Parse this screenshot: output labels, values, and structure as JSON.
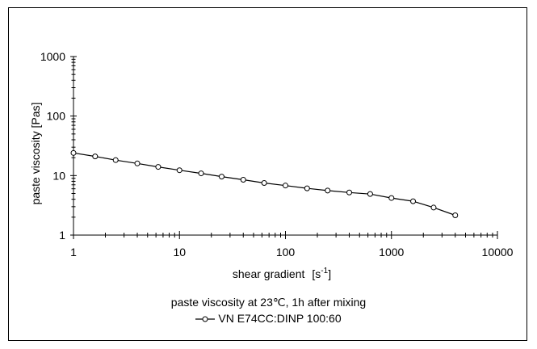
{
  "chart_data": {
    "type": "line",
    "xscale": "log",
    "yscale": "log",
    "xlim": [
      1,
      10000
    ],
    "ylim": [
      1,
      1000
    ],
    "x_ticks": [
      "1",
      "10",
      "100",
      "1000",
      "10000"
    ],
    "y_ticks": [
      "1",
      "10",
      "100",
      "1000"
    ],
    "xlabel": "shear gradient",
    "xlabel_unit": "[s",
    "xlabel_unit_exp": "-1",
    "xlabel_unit_close": "]",
    "ylabel": "paste viscosity   [Pas]",
    "caption": "paste viscosity at 23℃, 1h after mixing",
    "grid": false,
    "legend_position": "bottom-center",
    "series": [
      {
        "name": "VN E74CC:DINP  100:60",
        "color": "#000000",
        "marker": "open-circle",
        "x": [
          1,
          1.6,
          2.5,
          4,
          6.3,
          10,
          16,
          25,
          40,
          63,
          100,
          160,
          250,
          400,
          630,
          1000,
          1600,
          2500,
          4000
        ],
        "y": [
          24,
          21,
          18.2,
          16,
          14,
          12.3,
          10.9,
          9.6,
          8.5,
          7.5,
          6.8,
          6.1,
          5.6,
          5.2,
          4.9,
          4.2,
          3.7,
          2.9,
          2.15
        ]
      }
    ]
  }
}
